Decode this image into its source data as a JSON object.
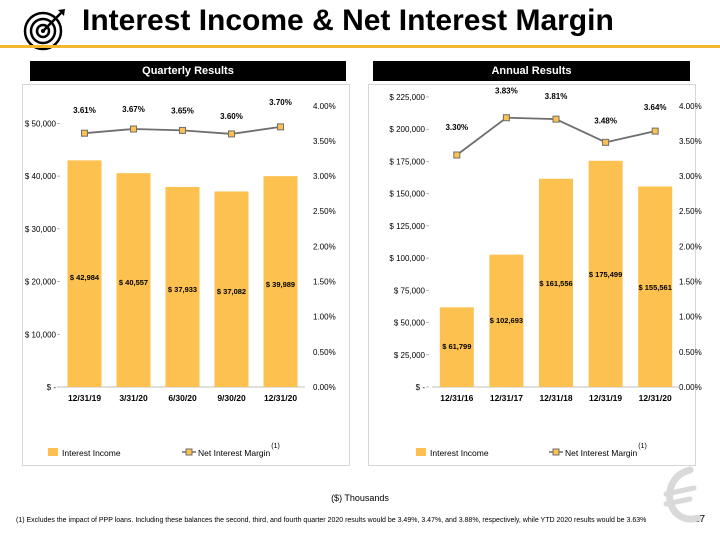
{
  "header": {
    "title": "Interest Income & Net Interest Margin"
  },
  "panels": {
    "quarterly_label": "Quarterly Results",
    "annual_label": "Annual Results"
  },
  "colors": {
    "bar": "#FCC14F",
    "line": "#6E6E6E",
    "marker": "#FCC14F",
    "accent": "#F2B631"
  },
  "chart_data": [
    {
      "type": "bar",
      "title": "Quarterly Results",
      "categories": [
        "12/31/19",
        "3/31/20",
        "6/30/20",
        "9/30/20",
        "12/31/20"
      ],
      "series": [
        {
          "name": "Interest Income",
          "type": "bar",
          "axis": "left",
          "values": [
            42984,
            40557,
            37933,
            37082,
            39989
          ],
          "labels": [
            "$ 42,984",
            "$ 40,557",
            "$ 37,933",
            "$ 37,082",
            "$ 39,989"
          ]
        },
        {
          "name": "Net Interest Margin",
          "type": "line",
          "axis": "right",
          "values": [
            3.61,
            3.67,
            3.65,
            3.6,
            3.7
          ],
          "labels": [
            "3.61%",
            "3.67%",
            "3.65%",
            "3.60%",
            "3.70%"
          ]
        }
      ],
      "ylim": [
        0,
        55000
      ],
      "y_ticks": [
        0,
        10000,
        20000,
        30000,
        40000,
        50000
      ],
      "y_tick_labels": [
        "$ -",
        "$ 10,000",
        "$ 20,000",
        "$ 30,000",
        "$ 40,000",
        "$ 50,000"
      ],
      "y2lim": [
        0,
        4.125
      ],
      "y2_ticks": [
        0,
        0.5,
        1,
        1.5,
        2,
        2.5,
        3,
        3.5,
        4
      ],
      "y2_tick_labels": [
        "0.00%",
        "0.50%",
        "1.00%",
        "1.50%",
        "2.00%",
        "2.50%",
        "3.00%",
        "3.50%",
        "4.00%"
      ],
      "legend_placement": "bottom",
      "legend_note": "(1)",
      "grid": false
    },
    {
      "type": "bar",
      "title": "Annual Results",
      "categories": [
        "12/31/16",
        "12/31/17",
        "12/31/18",
        "12/31/19",
        "12/31/20"
      ],
      "series": [
        {
          "name": "Interest Income",
          "type": "bar",
          "axis": "left",
          "values": [
            61799,
            102693,
            161556,
            175499,
            155561
          ],
          "labels": [
            "$ 61,799",
            "$ 102,693",
            "$ 161,556",
            "$ 175,499",
            "$ 155,561"
          ]
        },
        {
          "name": "Net Interest Margin",
          "type": "line",
          "axis": "right",
          "values": [
            3.3,
            3.83,
            3.81,
            3.48,
            3.64
          ],
          "labels": [
            "3.30%",
            "3.83%",
            "3.81%",
            "3.48%",
            "3.64%"
          ]
        }
      ],
      "ylim": [
        0,
        225000
      ],
      "y_ticks": [
        0,
        25000,
        50000,
        75000,
        100000,
        125000,
        150000,
        175000,
        200000,
        225000
      ],
      "y_tick_labels": [
        "$ -",
        "$ 25,000",
        "$ 50,000",
        "$ 75,000",
        "$ 100,000",
        "$ 125,000",
        "$ 150,000",
        "$ 175,000",
        "$ 200,000",
        "$ 225,000"
      ],
      "y2lim": [
        0,
        4.125
      ],
      "y2_ticks": [
        0,
        0.5,
        1,
        1.5,
        2,
        2.5,
        3,
        3.5,
        4
      ],
      "y2_tick_labels": [
        "0.00%",
        "0.50%",
        "1.00%",
        "1.50%",
        "2.00%",
        "2.50%",
        "3.00%",
        "3.50%",
        "4.00%"
      ],
      "legend_placement": "bottom",
      "legend_note": "(1)",
      "grid": false
    }
  ],
  "footer": {
    "units": "($) Thousands",
    "footnote": "(1) Excludes the impact of PPP loans.  Including these balances the second, third, and fourth quarter 2020 results would be 3.49%, 3.47%, and 3.88%, respectively, while YTD 2020 results would be 3.63%",
    "page_number": "17"
  }
}
